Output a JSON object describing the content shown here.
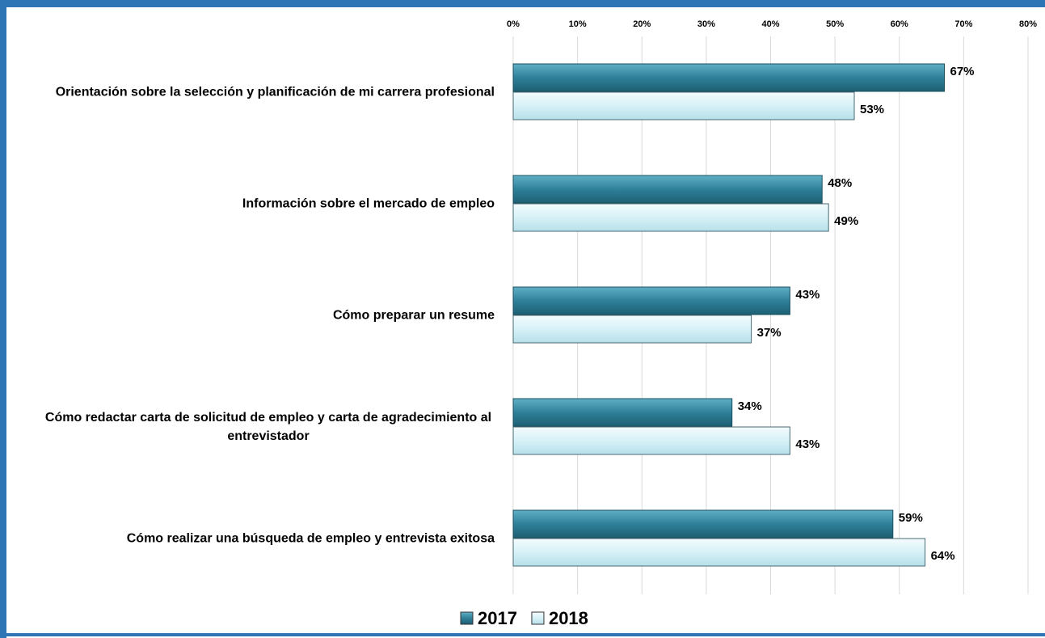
{
  "chart_data": {
    "type": "bar",
    "orientation": "horizontal",
    "categories": [
      "Orientación sobre la selección y planificación de mi carrera profesional",
      "Información sobre el mercado de empleo",
      "Cómo preparar un resume",
      "Cómo redactar carta de solicitud de empleo y carta de agradecimiento al entrevistador",
      "Cómo realizar una búsqueda de empleo y entrevista exitosa"
    ],
    "series": [
      {
        "name": "2017",
        "color": "#2f8099",
        "values": [
          67,
          48,
          43,
          34,
          59
        ],
        "value_labels": [
          "67%",
          "48%",
          "43%",
          "34%",
          "59%"
        ]
      },
      {
        "name": "2018",
        "color": "#d6f1f7",
        "values": [
          53,
          49,
          37,
          43,
          64
        ],
        "value_labels": [
          "53%",
          "49%",
          "37%",
          "43%",
          "64%"
        ]
      }
    ],
    "xlim": [
      0,
      80
    ],
    "xticks": [
      {
        "value": 0,
        "label": "0%"
      },
      {
        "value": 10,
        "label": "10%"
      },
      {
        "value": 20,
        "label": "20%"
      },
      {
        "value": 30,
        "label": "30%"
      },
      {
        "value": 40,
        "label": "40%"
      },
      {
        "value": 50,
        "label": "50%"
      },
      {
        "value": 60,
        "label": "60%"
      },
      {
        "value": 70,
        "label": "70%"
      },
      {
        "value": 80,
        "label": "80%"
      }
    ],
    "grid": true,
    "legend": "bottom"
  }
}
